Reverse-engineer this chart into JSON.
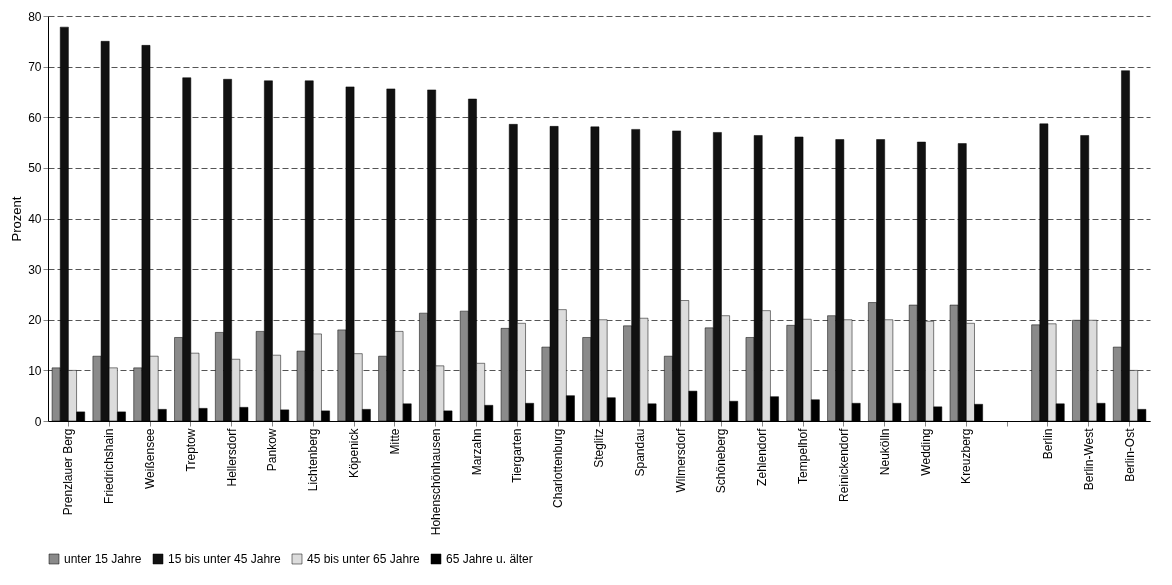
{
  "chart_data": {
    "type": "bar",
    "ylabel": "Prozent",
    "categories": [
      "Prenzlauer Berg",
      "Friedrichshain",
      "Weißensee",
      "Treptow",
      "Hellersdorf",
      "Pankow",
      "Lichtenberg",
      "Köpenick",
      "Mitte",
      "Hohenschönhausen",
      "Marzahn",
      "Tiergarten",
      "Charlottenburg",
      "Steglitz",
      "Spandau",
      "Wilmersdorf",
      "Schöneberg",
      "Zehlendorf",
      "Tempelhof",
      "Reinickendorf",
      "Neukölln",
      "Wedding",
      "Kreuzberg",
      null,
      "Berlin",
      "Berlin-West",
      "Berlin-Ost"
    ],
    "series": [
      {
        "name": "unter 15 Jahre",
        "color": "#8a8a8a",
        "values": [
          10.5,
          12.8,
          10.5,
          16.5,
          17.5,
          17.7,
          13.8,
          18,
          12.8,
          21.3,
          21.7,
          18.3,
          14.6,
          16.5,
          18.8,
          12.8,
          18.4,
          16.5,
          18.9,
          20.8,
          23.4,
          22.9,
          22.9,
          null,
          19,
          19.9,
          14.6
        ]
      },
      {
        "name": "15 bis unter 45 Jahre",
        "color": "#111111",
        "values": [
          77.8,
          75,
          74.2,
          67.8,
          67.5,
          67.2,
          67.2,
          66,
          65.6,
          65.4,
          63.6,
          58.6,
          58.2,
          58.1,
          57.6,
          57.3,
          57,
          56.4,
          56.1,
          55.6,
          55.6,
          55.1,
          54.8,
          null,
          58.7,
          56.4,
          69.2
        ]
      },
      {
        "name": "45 bis unter 65 Jahre",
        "color": "#dcdcdc",
        "values": [
          10,
          10.5,
          12.8,
          13.4,
          12.2,
          13,
          17.2,
          13.3,
          17.7,
          10.9,
          11.4,
          19.3,
          22,
          20,
          20.3,
          23.8,
          20.8,
          21.8,
          20.1,
          20,
          20,
          19.7,
          19.3,
          null,
          19.2,
          19.9,
          10
        ]
      },
      {
        "name": "65 Jahre u. älter",
        "color": "#000000",
        "values": [
          1.8,
          1.8,
          2.3,
          2.5,
          2.7,
          2.2,
          2,
          2.3,
          3.4,
          2,
          3.1,
          3.5,
          5,
          4.6,
          3.4,
          5.9,
          3.9,
          4.8,
          4.2,
          3.5,
          3.5,
          2.8,
          3.3,
          null,
          3.4,
          3.5,
          2.3
        ]
      }
    ],
    "ylim": [
      0,
      80
    ],
    "yticks": [
      0,
      10,
      20,
      30,
      40,
      50,
      60,
      70,
      80
    ],
    "grid": "y",
    "legend": "bottom"
  }
}
